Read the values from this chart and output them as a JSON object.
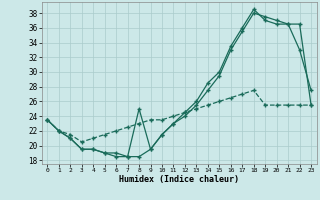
{
  "title": "",
  "xlabel": "Humidex (Indice chaleur)",
  "bg_color": "#cce8e8",
  "grid_color": "#aacccc",
  "line_color": "#1a6b5a",
  "xlim": [
    -0.5,
    23.5
  ],
  "ylim": [
    17.5,
    39.5
  ],
  "xticks": [
    0,
    1,
    2,
    3,
    4,
    5,
    6,
    7,
    8,
    9,
    10,
    11,
    12,
    13,
    14,
    15,
    16,
    17,
    18,
    19,
    20,
    21,
    22,
    23
  ],
  "yticks": [
    18,
    20,
    22,
    24,
    26,
    28,
    30,
    32,
    34,
    36,
    38
  ],
  "line1_x": [
    0,
    1,
    2,
    3,
    4,
    5,
    6,
    7,
    8,
    9,
    10,
    11,
    12,
    13,
    14,
    15,
    16,
    17,
    18,
    19,
    20,
    21,
    22,
    23
  ],
  "line1_y": [
    23.5,
    22.0,
    21.0,
    19.5,
    19.5,
    19.0,
    19.0,
    18.5,
    18.5,
    19.5,
    21.5,
    23.0,
    24.0,
    25.5,
    27.5,
    29.5,
    33.0,
    35.5,
    38.0,
    37.5,
    37.0,
    36.5,
    36.5,
    25.5
  ],
  "line2_x": [
    0,
    1,
    2,
    3,
    4,
    5,
    6,
    7,
    8,
    9,
    10,
    11,
    12,
    13,
    14,
    15,
    16,
    17,
    18,
    19,
    20,
    21,
    22,
    23
  ],
  "line2_y": [
    23.5,
    22.0,
    21.0,
    19.5,
    19.5,
    19.0,
    18.5,
    18.5,
    25.0,
    19.5,
    21.5,
    23.0,
    24.5,
    26.0,
    28.5,
    30.0,
    33.5,
    36.0,
    38.5,
    37.0,
    36.5,
    36.5,
    33.0,
    27.5
  ],
  "line3_x": [
    0,
    1,
    2,
    3,
    4,
    5,
    6,
    7,
    8,
    9,
    10,
    11,
    12,
    13,
    14,
    15,
    16,
    17,
    18,
    19,
    20,
    21,
    22,
    23
  ],
  "line3_y": [
    23.5,
    22.0,
    21.5,
    20.5,
    21.0,
    21.5,
    22.0,
    22.5,
    23.0,
    23.5,
    23.5,
    24.0,
    24.5,
    25.0,
    25.5,
    26.0,
    26.5,
    27.0,
    27.5,
    25.5,
    25.5,
    25.5,
    25.5,
    25.5
  ],
  "xlabel_fontsize": 6.0,
  "tick_fontsize": 5.5,
  "lw": 0.9,
  "ms": 2.0
}
